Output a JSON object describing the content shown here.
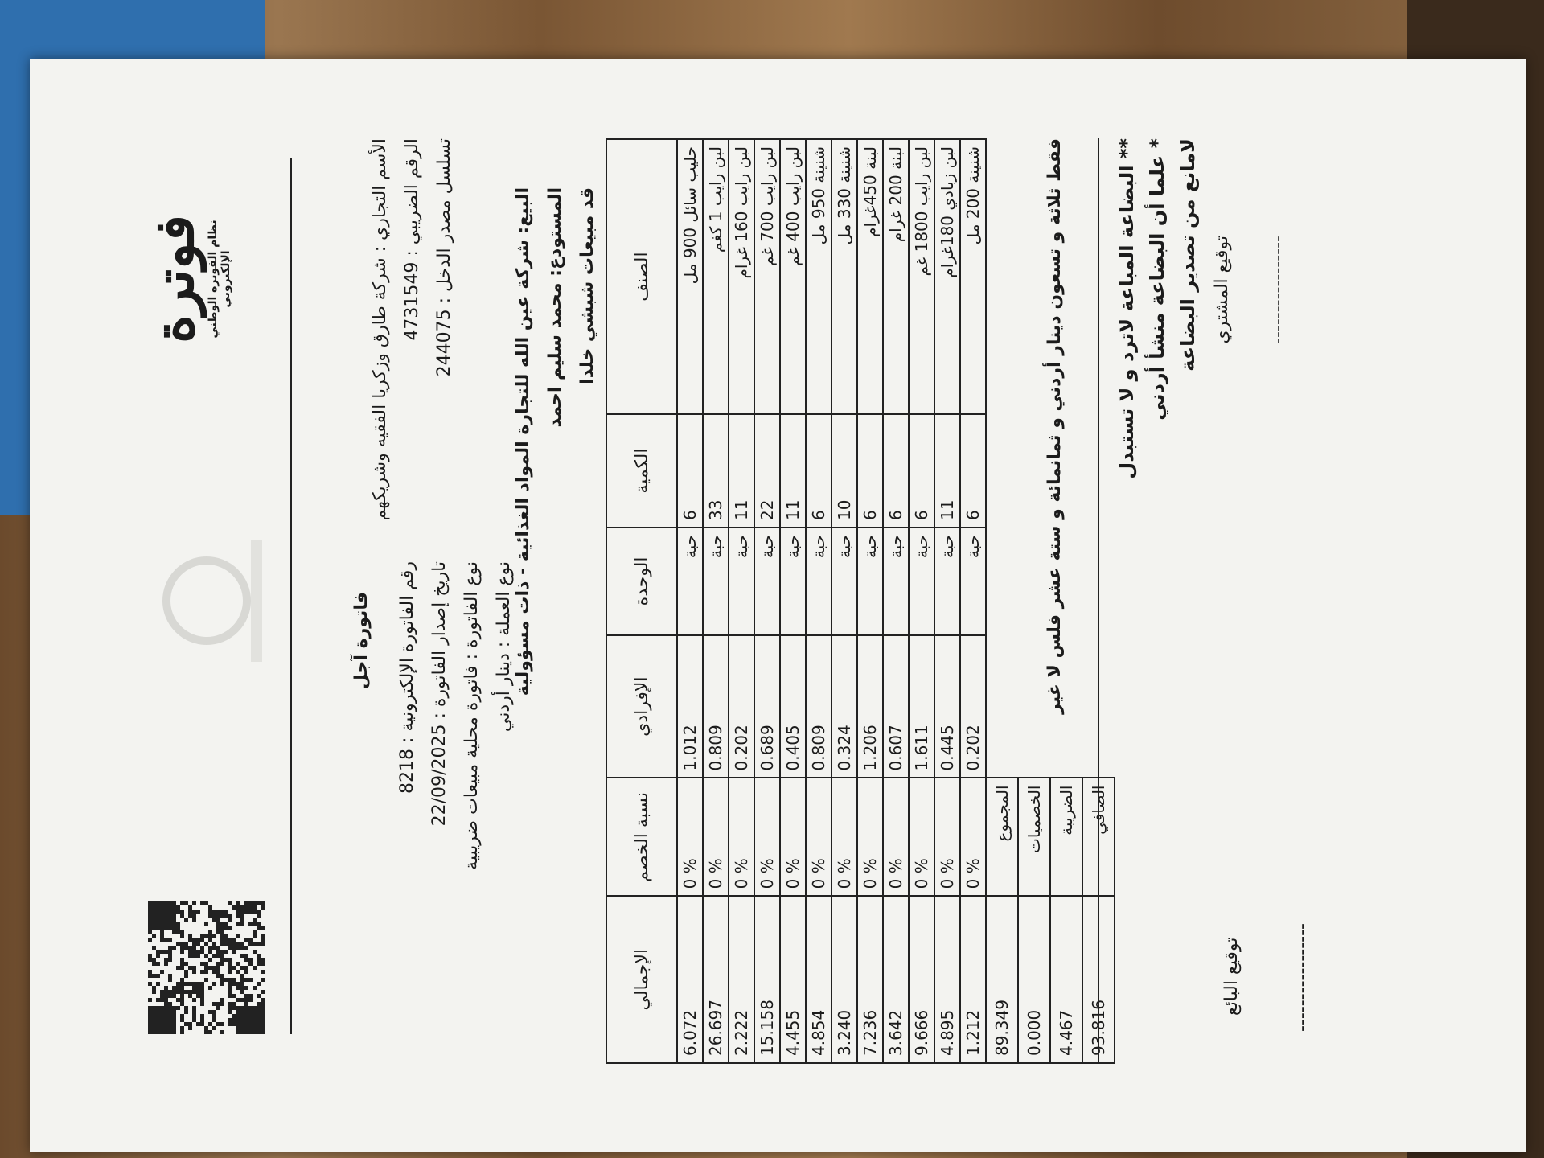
{
  "header": {
    "logo": "فوترة",
    "logo_subtitle": "نظام الفوترة الوطني الإلكتروني",
    "invoice_title": "فاتورة آجل"
  },
  "company_fields": [
    {
      "label": "الأسم التجاري :",
      "value": "شركة طارق وزكريا الفقيه وشريكهم"
    },
    {
      "label": "الرقم الضريبي :",
      "value": "4731549"
    },
    {
      "label": "تسلسل مصدر الدخل :",
      "value": "244075"
    }
  ],
  "invoice_fields": [
    {
      "label": "رقم الفاتورة الإلكترونية :",
      "value": "8218"
    },
    {
      "label": "تاريخ إصدار الفاتورة :",
      "value": "22/09/2025"
    },
    {
      "label": "نوع الفاتورة :",
      "value": "فاتورة محلية مبيعات ضريبية"
    },
    {
      "label": "نوع العملة :",
      "value": "دينار أردني"
    }
  ],
  "party_fields": [
    {
      "label": "البيع:",
      "value": "شركة عين الله للتجارة المواد الغذائية - ذات مسؤولية"
    },
    {
      "label": "المستودع:",
      "value": "محمد سليم احمد"
    }
  ],
  "sales_rep": "قد مبيعات شبشي خلدا",
  "table": {
    "columns": [
      "الصنف",
      "الكمية",
      "الوحدة",
      "الإفرادي",
      "نسبة الخصم",
      "الإجمالي"
    ],
    "rows": [
      [
        "حليب سائل 900 مل",
        "6",
        "حبة",
        "1.012",
        "0 %",
        "6.072"
      ],
      [
        "لبن رايب 1 كغم",
        "33",
        "حبة",
        "0.809",
        "0 %",
        "26.697"
      ],
      [
        "لبن رايب 160 غرام",
        "11",
        "حبة",
        "0.202",
        "0 %",
        "2.222"
      ],
      [
        "لبن رايب 700 غم",
        "22",
        "حبة",
        "0.689",
        "0 %",
        "15.158"
      ],
      [
        "لبن رايب 400 غم",
        "11",
        "حبة",
        "0.405",
        "0 %",
        "4.455"
      ],
      [
        "شنينة 950 مل",
        "6",
        "حبة",
        "0.809",
        "0 %",
        "4.854"
      ],
      [
        "شنينة 330 مل",
        "10",
        "حبة",
        "0.324",
        "0 %",
        "3.240"
      ],
      [
        "لبنة 450غرام",
        "6",
        "حبة",
        "1.206",
        "0 %",
        "7.236"
      ],
      [
        "لبنة 200 غرام",
        "6",
        "حبة",
        "0.607",
        "0 %",
        "3.642"
      ],
      [
        "لبن رايب 1800 غم",
        "6",
        "حبة",
        "1.611",
        "0 %",
        "9.666"
      ],
      [
        "لبن زبادي 180غرام",
        "11",
        "حبة",
        "0.445",
        "0 %",
        "4.895"
      ],
      [
        "شنينة 200 مل",
        "6",
        "حبة",
        "0.202",
        "0 %",
        "1.212"
      ]
    ],
    "totals": [
      {
        "label": "المجموع",
        "value": "89.349"
      },
      {
        "label": "الخصميات",
        "value": "0.000"
      },
      {
        "label": "الضريبة",
        "value": "4.467"
      },
      {
        "label": "الصافي",
        "value": "93.816"
      }
    ]
  },
  "amount_in_words": "فقط ثلاثة و تسعون دينار أردني و ثمانمائة و ستة عشر فلس لا غير",
  "notes": [
    "** البضاعة المباعة لاترد و لا تستبدل",
    "* علما أن البضاعة منشأ أردني",
    "لامانع من تصدير البضاعة"
  ],
  "signatures": {
    "buyer": "توقيع المشتري",
    "seller": "توقيع البائع",
    "line": "-----------------"
  }
}
